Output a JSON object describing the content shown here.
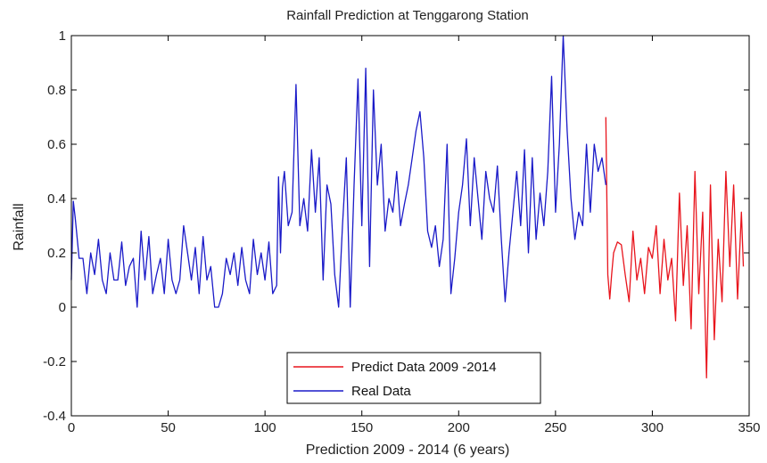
{
  "chart_data": {
    "type": "line",
    "title": "Rainfall Prediction at Tenggarong Station",
    "xlabel": "Prediction 2009 - 2014 (6 years)",
    "ylabel": "Rainfall",
    "xlim": [
      0,
      350
    ],
    "ylim": [
      -0.4,
      1
    ],
    "xticks": [
      0,
      50,
      100,
      150,
      200,
      250,
      300,
      350
    ],
    "yticks": [
      -0.4,
      -0.2,
      0,
      0.2,
      0.4,
      0.6,
      0.8,
      1
    ],
    "xtick_labels": [
      "0",
      "50",
      "100",
      "150",
      "200",
      "250",
      "300",
      "350"
    ],
    "ytick_labels": [
      "-0.4",
      "-0.2",
      "0",
      "0.2",
      "0.4",
      "0.6",
      "0.8",
      "1"
    ],
    "grid": false,
    "legend_position": "bottom-center",
    "series": [
      {
        "name": "Predict Data 2009 -2014",
        "color": "#e8141c",
        "x": [
          276,
          277,
          278,
          279,
          280,
          282,
          284,
          286,
          288,
          290,
          292,
          294,
          296,
          298,
          300,
          302,
          304,
          306,
          308,
          310,
          312,
          314,
          316,
          318,
          320,
          322,
          324,
          326,
          328,
          330,
          332,
          334,
          336,
          338,
          340,
          342,
          344,
          346,
          347
        ],
        "y": [
          0.7,
          0.12,
          0.03,
          0.12,
          0.2,
          0.24,
          0.23,
          0.12,
          0.02,
          0.28,
          0.1,
          0.18,
          0.05,
          0.22,
          0.18,
          0.3,
          0.05,
          0.25,
          0.1,
          0.18,
          -0.05,
          0.42,
          0.08,
          0.3,
          -0.08,
          0.5,
          0.05,
          0.35,
          -0.26,
          0.45,
          -0.12,
          0.25,
          0.02,
          0.5,
          0.15,
          0.45,
          0.03,
          0.35,
          0.15
        ]
      },
      {
        "name": "Real Data",
        "color": "#1a1ac8",
        "x": [
          0,
          1,
          2,
          4,
          6,
          8,
          10,
          12,
          14,
          16,
          18,
          20,
          22,
          24,
          26,
          28,
          30,
          32,
          34,
          36,
          38,
          40,
          42,
          44,
          46,
          48,
          50,
          52,
          54,
          56,
          58,
          60,
          62,
          64,
          66,
          68,
          70,
          72,
          74,
          76,
          78,
          80,
          82,
          84,
          86,
          88,
          90,
          92,
          94,
          96,
          98,
          100,
          102,
          104,
          106,
          107,
          108,
          109,
          110,
          112,
          114,
          116,
          118,
          120,
          122,
          124,
          126,
          128,
          130,
          132,
          134,
          136,
          138,
          140,
          142,
          144,
          146,
          148,
          150,
          152,
          154,
          156,
          158,
          160,
          162,
          164,
          166,
          168,
          170,
          172,
          174,
          176,
          178,
          180,
          182,
          184,
          186,
          188,
          190,
          192,
          194,
          196,
          198,
          200,
          202,
          204,
          206,
          208,
          210,
          212,
          214,
          216,
          218,
          220,
          222,
          224,
          226,
          228,
          230,
          232,
          234,
          236,
          238,
          240,
          242,
          244,
          246,
          248,
          250,
          252,
          254,
          256,
          258,
          260,
          262,
          264,
          266,
          268,
          270,
          272,
          274,
          276
        ],
        "y": [
          0.1,
          0.39,
          0.33,
          0.18,
          0.18,
          0.05,
          0.2,
          0.12,
          0.25,
          0.1,
          0.05,
          0.2,
          0.1,
          0.1,
          0.24,
          0.08,
          0.15,
          0.18,
          0.0,
          0.28,
          0.1,
          0.26,
          0.05,
          0.12,
          0.18,
          0.05,
          0.25,
          0.1,
          0.05,
          0.1,
          0.3,
          0.2,
          0.1,
          0.22,
          0.05,
          0.26,
          0.1,
          0.15,
          0.0,
          0.0,
          0.05,
          0.18,
          0.12,
          0.2,
          0.08,
          0.22,
          0.1,
          0.05,
          0.25,
          0.12,
          0.2,
          0.1,
          0.24,
          0.05,
          0.08,
          0.48,
          0.2,
          0.44,
          0.5,
          0.3,
          0.35,
          0.82,
          0.3,
          0.4,
          0.28,
          0.58,
          0.35,
          0.55,
          0.1,
          0.45,
          0.38,
          0.12,
          0.0,
          0.3,
          0.55,
          0.0,
          0.45,
          0.84,
          0.3,
          0.88,
          0.15,
          0.8,
          0.45,
          0.6,
          0.28,
          0.4,
          0.35,
          0.5,
          0.3,
          0.38,
          0.45,
          0.55,
          0.65,
          0.72,
          0.55,
          0.28,
          0.22,
          0.3,
          0.15,
          0.25,
          0.6,
          0.05,
          0.18,
          0.35,
          0.45,
          0.62,
          0.3,
          0.55,
          0.4,
          0.25,
          0.5,
          0.4,
          0.35,
          0.52,
          0.25,
          0.02,
          0.2,
          0.35,
          0.5,
          0.3,
          0.58,
          0.2,
          0.55,
          0.25,
          0.42,
          0.3,
          0.5,
          0.85,
          0.35,
          0.6,
          1.0,
          0.65,
          0.4,
          0.25,
          0.35,
          0.3,
          0.6,
          0.35,
          0.6,
          0.5,
          0.55,
          0.45
        ]
      }
    ]
  }
}
